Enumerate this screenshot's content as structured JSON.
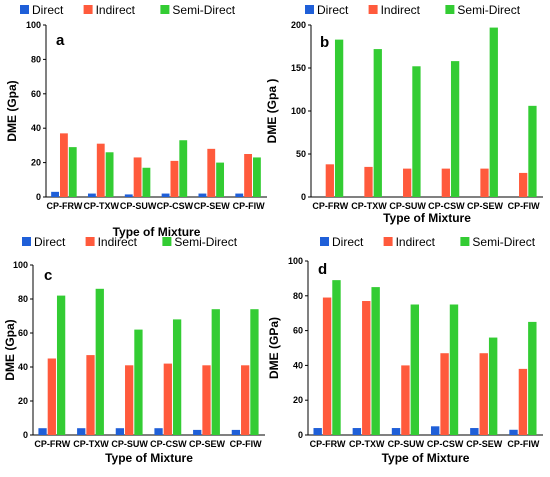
{
  "chart_data": [
    {
      "type": "bar",
      "panel_label": "a",
      "categories": [
        "CP-FRW",
        "CP-TXW",
        "CP-SUW",
        "CP-CSW",
        "CP-SEW",
        "CP-FIW"
      ],
      "series": [
        {
          "name": "Direct",
          "color": "#1f5fd8",
          "values": [
            3,
            2,
            1.5,
            2,
            2,
            2
          ]
        },
        {
          "name": "Indirect",
          "color": "#ff5a3c",
          "values": [
            37,
            31,
            23,
            21,
            28,
            25
          ]
        },
        {
          "name": "Semi-Direct",
          "color": "#33cc33",
          "values": [
            29,
            26,
            17,
            33,
            20,
            23
          ]
        }
      ],
      "xlabel": "Type of Mixture",
      "ylabel": "DME (Gpa)",
      "ylim": [
        0,
        100
      ],
      "yticks": [
        0,
        20,
        40,
        60,
        80,
        100
      ],
      "legend_position": "top"
    },
    {
      "type": "bar",
      "panel_label": "b",
      "categories": [
        "CP-FRW",
        "CP-TXW",
        "CP-SUW",
        "CP-CSW",
        "CP-SEW",
        "CP-FIW"
      ],
      "series": [
        {
          "name": "Direct",
          "color": "#1f5fd8",
          "values": [
            0,
            0,
            0,
            0,
            0,
            0
          ]
        },
        {
          "name": "Indirect",
          "color": "#ff5a3c",
          "values": [
            38,
            35,
            33,
            33,
            33,
            28
          ]
        },
        {
          "name": "Semi-Direct",
          "color": "#33cc33",
          "values": [
            183,
            172,
            152,
            158,
            197,
            106
          ]
        }
      ],
      "xlabel": "Type of Mixture",
      "ylabel": "DME (Gpa )",
      "ylim": [
        0,
        200
      ],
      "yticks": [
        0,
        50,
        100,
        150,
        200
      ],
      "legend_position": "top"
    },
    {
      "type": "bar",
      "panel_label": "c",
      "categories": [
        "CP-FRW",
        "CP-TXW",
        "CP-SUW",
        "CP-CSW",
        "CP-SEW",
        "CP-FIW"
      ],
      "series": [
        {
          "name": "Direct",
          "color": "#1f5fd8",
          "values": [
            4,
            4,
            4,
            4,
            3,
            3
          ]
        },
        {
          "name": "Indirect",
          "color": "#ff5a3c",
          "values": [
            45,
            47,
            41,
            42,
            41,
            41
          ]
        },
        {
          "name": "Semi-Direct",
          "color": "#33cc33",
          "values": [
            82,
            86,
            62,
            68,
            74,
            74
          ]
        }
      ],
      "xlabel": "Type of Mixture",
      "ylabel": "DME (Gpa)",
      "ylim": [
        0,
        100
      ],
      "yticks": [
        0,
        20,
        40,
        60,
        80,
        100
      ],
      "legend_position": "top"
    },
    {
      "type": "bar",
      "panel_label": "d",
      "categories": [
        "CP-FRW",
        "CP-TXW",
        "CP-SUW",
        "CP-CSW",
        "CP-SEW",
        "CP-FIW"
      ],
      "series": [
        {
          "name": "Direct",
          "color": "#1f5fd8",
          "values": [
            4,
            4,
            4,
            5,
            4,
            3
          ]
        },
        {
          "name": "Indirect",
          "color": "#ff5a3c",
          "values": [
            79,
            77,
            40,
            47,
            47,
            38
          ]
        },
        {
          "name": "Semi-Direct",
          "color": "#33cc33",
          "values": [
            89,
            85,
            75,
            75,
            56,
            65
          ]
        }
      ],
      "xlabel": "Type of Mixture",
      "ylabel": "DME (GPa)",
      "ylim": [
        0,
        100
      ],
      "yticks": [
        0,
        20,
        40,
        60,
        80,
        100
      ],
      "legend_position": "top"
    }
  ]
}
